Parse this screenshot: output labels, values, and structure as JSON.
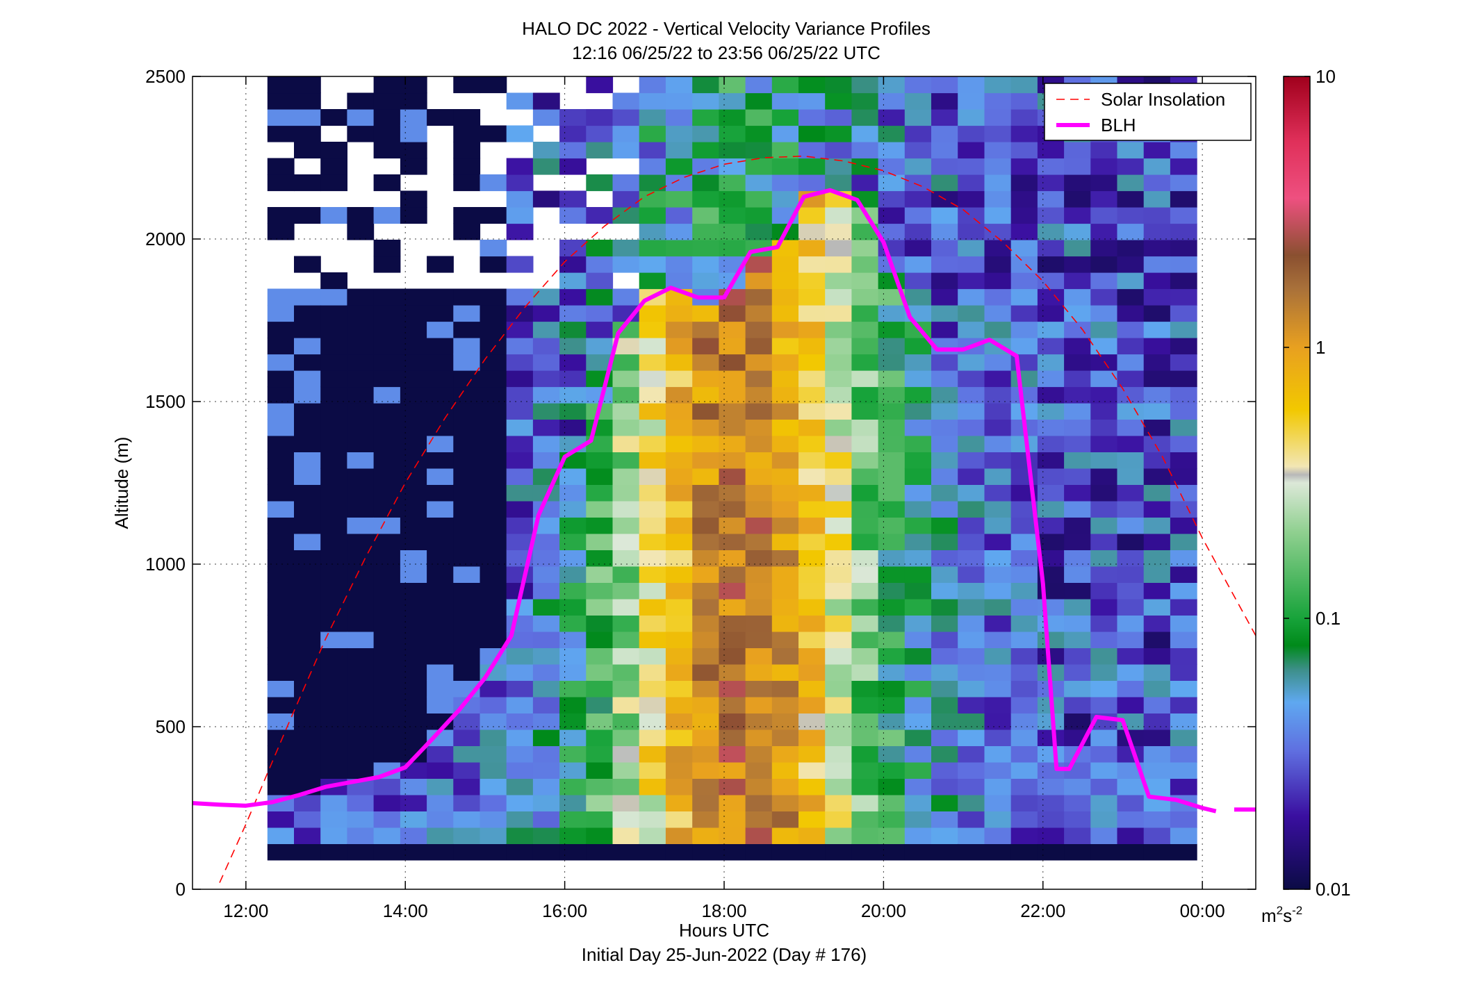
{
  "chart_data": {
    "type": "heatmap",
    "title": "HALO DC 2022 - Vertical Velocity Variance Profiles",
    "subtitle": "12:16 06/25/22 to 23:56 06/25/22  UTC",
    "xlabel": "Hours UTC",
    "xlabel2": "Initial Day 25-Jun-2022 (Day # 176)",
    "ylabel": "Altitude (m)",
    "xlim": [
      11.33,
      24.67
    ],
    "ylim": [
      0,
      2500
    ],
    "x_ticks": [
      12,
      14,
      16,
      18,
      20,
      22,
      24
    ],
    "x_tick_labels": [
      "12:00",
      "14:00",
      "16:00",
      "18:00",
      "20:00",
      "22:00",
      "00:00"
    ],
    "y_ticks": [
      0,
      500,
      1000,
      1500,
      2000,
      2500
    ],
    "y_tick_labels": [
      "0",
      "500",
      "1000",
      "1500",
      "2000",
      "2500"
    ],
    "grid": true,
    "legend_position": "top-right",
    "colorbar": {
      "scale": "log",
      "range": [
        0.01,
        10
      ],
      "tick_labels": [
        "0.01",
        "0.1",
        "1",
        "10"
      ],
      "unit_label": "m",
      "unit_sup1": "2",
      "unit_mid": "s",
      "unit_sup2": "-2"
    },
    "series": [
      {
        "name": "Solar Insolation",
        "color": "#ff0000",
        "style": "dashed",
        "x": [
          11.67,
          12.0,
          12.5,
          13.0,
          13.5,
          14.0,
          14.5,
          15.0,
          15.5,
          16.0,
          16.5,
          17.0,
          17.5,
          18.0,
          18.5,
          19.0,
          19.5,
          20.0,
          20.5,
          21.0,
          21.5,
          22.0,
          22.5,
          23.0,
          23.5,
          24.0,
          24.67
        ],
        "y": [
          20,
          200,
          490,
          770,
          1020,
          1250,
          1450,
          1630,
          1790,
          1930,
          2040,
          2130,
          2190,
          2230,
          2250,
          2255,
          2240,
          2210,
          2160,
          2090,
          1990,
          1870,
          1720,
          1540,
          1330,
          1080,
          780
        ]
      },
      {
        "name": "BLH",
        "color": "#ff00ff",
        "style": "solid",
        "x": [
          11.33,
          11.67,
          12.0,
          12.33,
          12.67,
          13.0,
          13.33,
          13.67,
          14.0,
          14.33,
          14.67,
          15.0,
          15.33,
          15.67,
          16.0,
          16.33,
          16.67,
          17.0,
          17.33,
          17.67,
          18.0,
          18.33,
          18.67,
          19.0,
          19.33,
          19.67,
          20.0,
          20.33,
          20.67,
          21.0,
          21.33,
          21.67,
          22.0,
          22.17,
          22.33,
          22.67,
          23.0,
          23.33,
          23.67,
          24.0,
          24.17
        ],
        "y": [
          265,
          260,
          257,
          268,
          290,
          315,
          330,
          345,
          375,
          460,
          550,
          650,
          780,
          1150,
          1330,
          1380,
          1710,
          1810,
          1850,
          1820,
          1820,
          1960,
          1975,
          2130,
          2150,
          2120,
          1990,
          1760,
          1660,
          1660,
          1690,
          1640,
          940,
          370,
          370,
          530,
          520,
          285,
          275,
          250,
          240
        ]
      },
      {
        "name": "",
        "color": "#ff00ff",
        "style": "solid",
        "x": [
          24.4,
          24.67
        ],
        "y": [
          245,
          245
        ]
      }
    ],
    "heatmap_x_range": [
      12.27,
      23.93
    ],
    "heatmap_altitude_range": [
      90,
      2500
    ],
    "heatmap_note": "log10 variance grid; bins ~20 min x 50 m"
  }
}
